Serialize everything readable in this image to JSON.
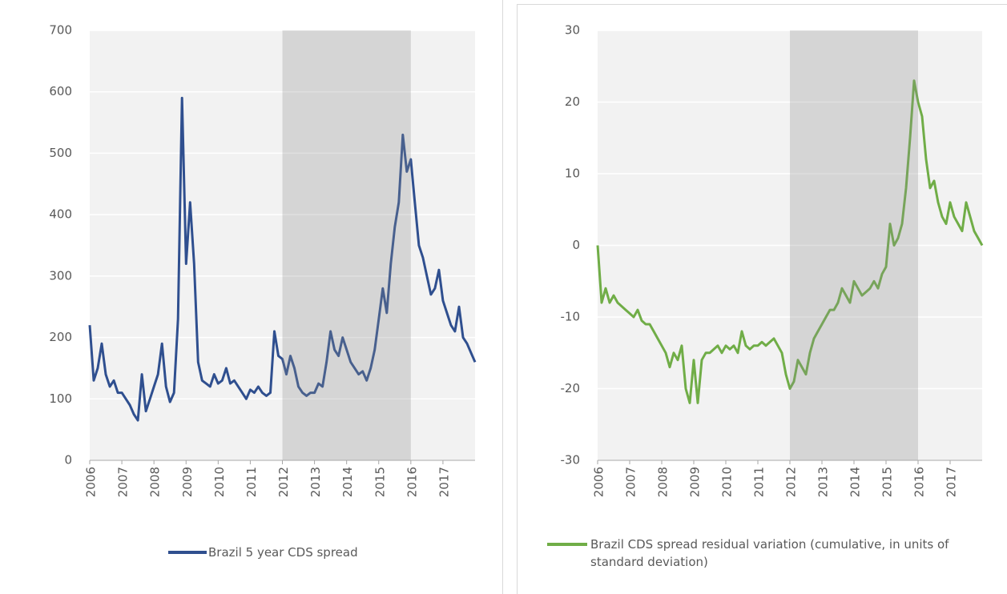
{
  "chart_data": [
    {
      "type": "line",
      "x": [
        2006,
        2006.125,
        2006.25,
        2006.375,
        2006.5,
        2006.625,
        2006.75,
        2006.875,
        2007,
        2007.125,
        2007.25,
        2007.375,
        2007.5,
        2007.625,
        2007.75,
        2007.875,
        2008,
        2008.125,
        2008.25,
        2008.375,
        2008.5,
        2008.625,
        2008.75,
        2008.875,
        2009,
        2009.125,
        2009.25,
        2009.375,
        2009.5,
        2009.625,
        2009.75,
        2009.875,
        2010,
        2010.125,
        2010.25,
        2010.375,
        2010.5,
        2010.625,
        2010.75,
        2010.875,
        2011,
        2011.125,
        2011.25,
        2011.375,
        2011.5,
        2011.625,
        2011.75,
        2011.875,
        2012,
        2012.125,
        2012.25,
        2012.375,
        2012.5,
        2012.625,
        2012.75,
        2012.875,
        2013,
        2013.125,
        2013.25,
        2013.375,
        2013.5,
        2013.625,
        2013.75,
        2013.875,
        2014,
        2014.125,
        2014.25,
        2014.375,
        2014.5,
        2014.625,
        2014.75,
        2014.875,
        2015,
        2015.125,
        2015.25,
        2015.375,
        2015.5,
        2015.625,
        2015.75,
        2015.875,
        2016,
        2016.125,
        2016.25,
        2016.375,
        2016.5,
        2016.625,
        2016.75,
        2016.875,
        2017,
        2017.125,
        2017.25,
        2017.375,
        2017.5,
        2017.625,
        2017.75,
        2017.875,
        2018
      ],
      "series": [
        {
          "name": "Brazil 5 year CDS spread",
          "color": "#2f4f8f",
          "values": [
            220,
            130,
            150,
            190,
            140,
            120,
            130,
            110,
            110,
            100,
            90,
            75,
            65,
            140,
            80,
            100,
            120,
            140,
            190,
            120,
            95,
            110,
            230,
            590,
            320,
            420,
            320,
            160,
            130,
            125,
            120,
            140,
            125,
            130,
            150,
            125,
            130,
            120,
            110,
            100,
            115,
            110,
            120,
            110,
            105,
            110,
            210,
            170,
            165,
            140,
            170,
            150,
            120,
            110,
            105,
            110,
            110,
            125,
            120,
            160,
            210,
            180,
            170,
            200,
            180,
            160,
            150,
            140,
            145,
            130,
            150,
            180,
            230,
            280,
            240,
            320,
            380,
            420,
            530,
            470,
            490,
            420,
            350,
            330,
            300,
            270,
            280,
            310,
            260,
            240,
            220,
            210,
            250,
            200,
            190,
            175,
            160
          ]
        }
      ],
      "xlim": [
        2006,
        2018
      ],
      "xticks": [
        2006,
        2007,
        2008,
        2009,
        2010,
        2011,
        2012,
        2013,
        2014,
        2015,
        2016,
        2017
      ],
      "ylim": [
        0,
        700
      ],
      "yticks": [
        0,
        100,
        200,
        300,
        400,
        500,
        600,
        700
      ],
      "grid": true,
      "highlight": [
        2012,
        2016
      ]
    },
    {
      "type": "line",
      "x": [
        2006,
        2006.125,
        2006.25,
        2006.375,
        2006.5,
        2006.625,
        2006.75,
        2006.875,
        2007,
        2007.125,
        2007.25,
        2007.375,
        2007.5,
        2007.625,
        2007.75,
        2007.875,
        2008,
        2008.125,
        2008.25,
        2008.375,
        2008.5,
        2008.625,
        2008.75,
        2008.875,
        2009,
        2009.125,
        2009.25,
        2009.375,
        2009.5,
        2009.625,
        2009.75,
        2009.875,
        2010,
        2010.125,
        2010.25,
        2010.375,
        2010.5,
        2010.625,
        2010.75,
        2010.875,
        2011,
        2011.125,
        2011.25,
        2011.375,
        2011.5,
        2011.625,
        2011.75,
        2011.875,
        2012,
        2012.125,
        2012.25,
        2012.375,
        2012.5,
        2012.625,
        2012.75,
        2012.875,
        2013,
        2013.125,
        2013.25,
        2013.375,
        2013.5,
        2013.625,
        2013.75,
        2013.875,
        2014,
        2014.125,
        2014.25,
        2014.375,
        2014.5,
        2014.625,
        2014.75,
        2014.875,
        2015,
        2015.125,
        2015.25,
        2015.375,
        2015.5,
        2015.625,
        2015.75,
        2015.875,
        2016,
        2016.125,
        2016.25,
        2016.375,
        2016.5,
        2016.625,
        2016.75,
        2016.875,
        2017,
        2017.125,
        2017.25,
        2017.375,
        2017.5,
        2017.625,
        2017.75,
        2017.875,
        2018
      ],
      "series": [
        {
          "name": "Brazil CDS spread residual variation (cumulative, in units of standard deviation)",
          "color": "#70ad47",
          "values": [
            0,
            -8,
            -6,
            -8,
            -7,
            -8,
            -8.5,
            -9,
            -9.5,
            -10,
            -9,
            -10.5,
            -11,
            -11,
            -12,
            -13,
            -14,
            -15,
            -17,
            -15,
            -16,
            -14,
            -20,
            -22,
            -16,
            -22,
            -16,
            -15,
            -15,
            -14.5,
            -14,
            -15,
            -14,
            -14.5,
            -14,
            -15,
            -12,
            -14,
            -14.5,
            -14,
            -14,
            -13.5,
            -14,
            -13.5,
            -13,
            -14,
            -15,
            -18,
            -20,
            -19,
            -16,
            -17,
            -18,
            -15,
            -13,
            -12,
            -11,
            -10,
            -9,
            -9,
            -8,
            -6,
            -7,
            -8,
            -5,
            -6,
            -7,
            -6.5,
            -6,
            -5,
            -6,
            -4,
            -3,
            3,
            0,
            1,
            3,
            8,
            15,
            23,
            20,
            18,
            12,
            8,
            9,
            6,
            4,
            3,
            6,
            4,
            3,
            2,
            6,
            4,
            2,
            1,
            0
          ]
        }
      ],
      "xlim": [
        2006,
        2018
      ],
      "xticks": [
        2006,
        2007,
        2008,
        2009,
        2010,
        2011,
        2012,
        2013,
        2014,
        2015,
        2016,
        2017
      ],
      "ylim": [
        -30,
        30
      ],
      "yticks": [
        -30,
        -20,
        -10,
        0,
        10,
        20,
        30
      ],
      "grid": true,
      "highlight": [
        2012,
        2016
      ]
    }
  ]
}
